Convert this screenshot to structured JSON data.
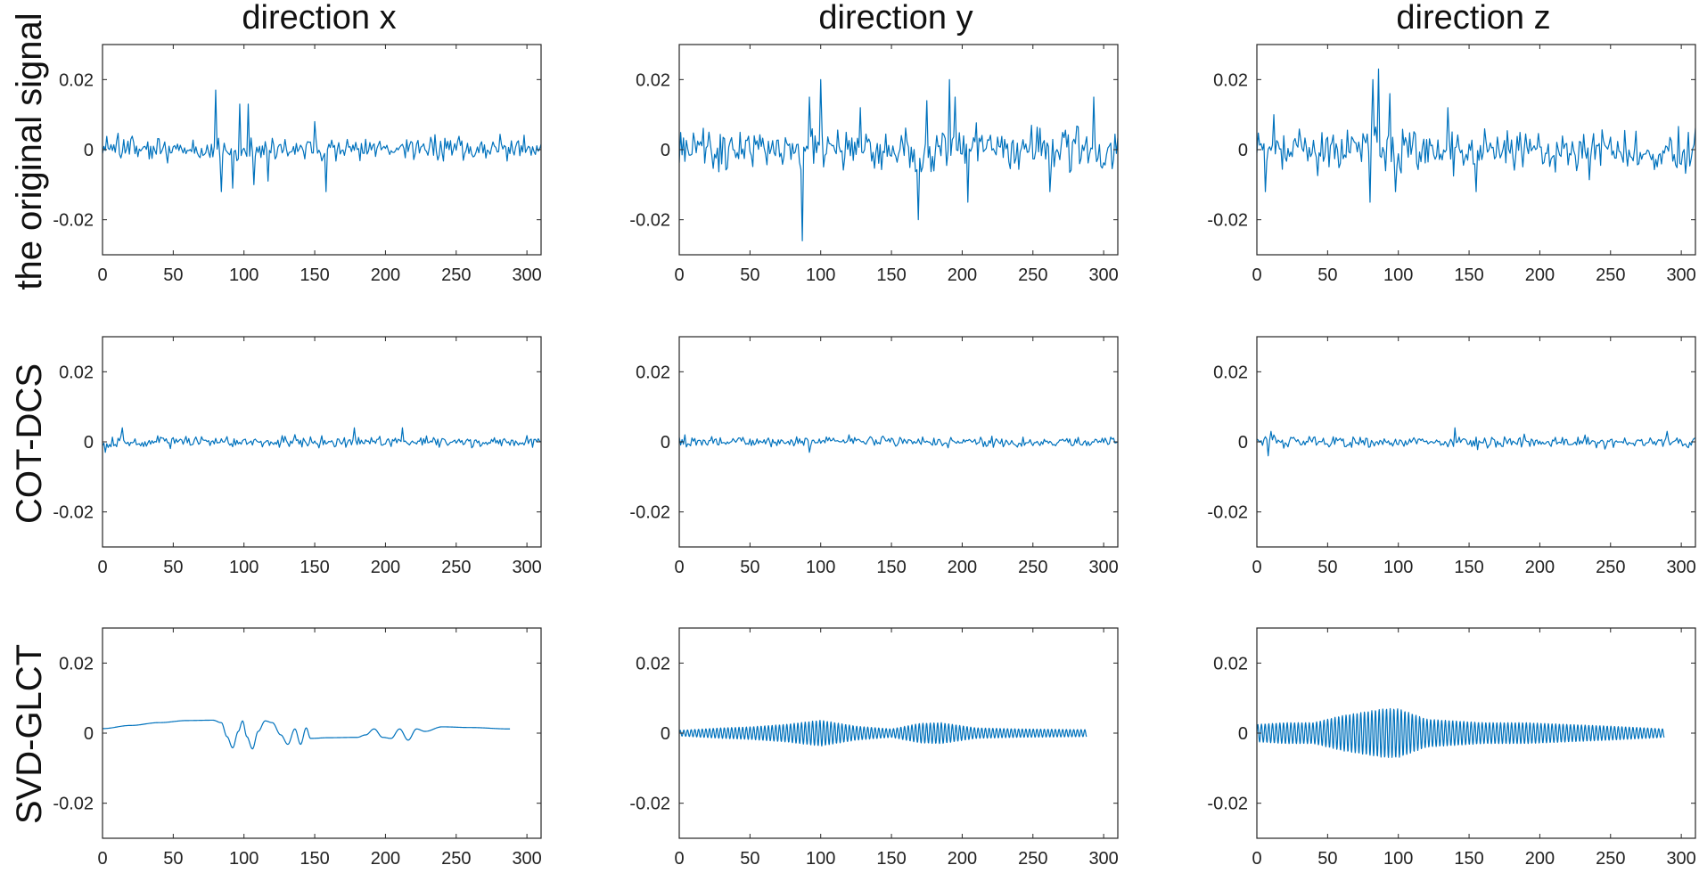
{
  "figure": {
    "column_titles": [
      "direction x",
      "direction y",
      "direction z"
    ],
    "row_labels": [
      "the original signal",
      "COT-DCS",
      "SVD-GLCT"
    ],
    "line_color": "#0072BD"
  },
  "chart_data": [
    {
      "type": "line",
      "row": 0,
      "col": 0,
      "title": "direction x",
      "ylabel": "the original signal",
      "xlim": [
        0,
        310
      ],
      "ylim": [
        -0.03,
        0.03
      ],
      "xticks": [
        0,
        50,
        100,
        150,
        200,
        250,
        300
      ],
      "yticks": [
        -0.02,
        0,
        0.02
      ],
      "ytick_labels": [
        "-0.02",
        "0",
        "0.02"
      ],
      "grid": false,
      "length": 310,
      "style": {
        "kind": "noise",
        "amp": 0.0035,
        "seed": 11,
        "bursts": [
          [
            80,
            0.017
          ],
          [
            84,
            -0.012
          ],
          [
            92,
            -0.011
          ],
          [
            97,
            0.013
          ],
          [
            103,
            0.013
          ],
          [
            107,
            -0.01
          ],
          [
            117,
            -0.009
          ],
          [
            158,
            -0.012
          ],
          [
            150,
            0.008
          ]
        ]
      }
    },
    {
      "type": "line",
      "row": 0,
      "col": 1,
      "title": "direction y",
      "xlim": [
        0,
        310
      ],
      "ylim": [
        -0.03,
        0.03
      ],
      "xticks": [
        0,
        50,
        100,
        150,
        200,
        250,
        300
      ],
      "yticks": [
        -0.02,
        0,
        0.02
      ],
      "ytick_labels": [
        "-0.02",
        "0",
        "0.02"
      ],
      "grid": false,
      "length": 310,
      "style": {
        "kind": "noise",
        "amp": 0.006,
        "seed": 23,
        "bursts": [
          [
            87,
            -0.026
          ],
          [
            100,
            0.02
          ],
          [
            92,
            0.015
          ],
          [
            169,
            -0.02
          ],
          [
            191,
            0.02
          ],
          [
            195,
            0.015
          ],
          [
            204,
            -0.015
          ],
          [
            293,
            0.015
          ],
          [
            262,
            -0.012
          ],
          [
            175,
            0.014
          ],
          [
            128,
            0.012
          ]
        ]
      }
    },
    {
      "type": "line",
      "row": 0,
      "col": 2,
      "title": "direction z",
      "xlim": [
        0,
        310
      ],
      "ylim": [
        -0.03,
        0.03
      ],
      "xticks": [
        0,
        50,
        100,
        150,
        200,
        250,
        300
      ],
      "yticks": [
        -0.02,
        0,
        0.02
      ],
      "ytick_labels": [
        "-0.02",
        "0",
        "0.02"
      ],
      "grid": false,
      "length": 310,
      "style": {
        "kind": "noise",
        "amp": 0.006,
        "seed": 37,
        "bursts": [
          [
            86,
            0.023
          ],
          [
            82,
            0.02
          ],
          [
            80,
            -0.015
          ],
          [
            94,
            0.016
          ],
          [
            98,
            -0.012
          ],
          [
            6,
            -0.012
          ],
          [
            135,
            0.012
          ],
          [
            155,
            -0.012
          ],
          [
            12,
            0.01
          ]
        ]
      }
    },
    {
      "type": "line",
      "row": 1,
      "col": 0,
      "ylabel": "COT-DCS",
      "xlim": [
        0,
        310
      ],
      "ylim": [
        -0.03,
        0.03
      ],
      "xticks": [
        0,
        50,
        100,
        150,
        200,
        250,
        300
      ],
      "yticks": [
        -0.02,
        0,
        0.02
      ],
      "ytick_labels": [
        "-0.02",
        "0",
        "0.02"
      ],
      "grid": false,
      "length": 310,
      "style": {
        "kind": "noise",
        "amp": 0.0016,
        "seed": 51,
        "bursts": [
          [
            14,
            0.004
          ],
          [
            178,
            0.004
          ],
          [
            212,
            0.004
          ],
          [
            2,
            -0.003
          ]
        ]
      }
    },
    {
      "type": "line",
      "row": 1,
      "col": 1,
      "xlim": [
        0,
        310
      ],
      "ylim": [
        -0.03,
        0.03
      ],
      "xticks": [
        0,
        50,
        100,
        150,
        200,
        250,
        300
      ],
      "yticks": [
        -0.02,
        0,
        0.02
      ],
      "ytick_labels": [
        "-0.02",
        "0",
        "0.02"
      ],
      "grid": false,
      "length": 310,
      "style": {
        "kind": "noise",
        "amp": 0.0013,
        "seed": 63,
        "bursts": [
          [
            92,
            -0.003
          ],
          [
            120,
            0.002
          ],
          [
            4,
            0.002
          ]
        ]
      }
    },
    {
      "type": "line",
      "row": 1,
      "col": 2,
      "xlim": [
        0,
        310
      ],
      "ylim": [
        -0.03,
        0.03
      ],
      "xticks": [
        0,
        50,
        100,
        150,
        200,
        250,
        300
      ],
      "yticks": [
        -0.02,
        0,
        0.02
      ],
      "ytick_labels": [
        "-0.02",
        "0",
        "0.02"
      ],
      "grid": false,
      "length": 310,
      "style": {
        "kind": "noise",
        "amp": 0.0017,
        "seed": 77,
        "bursts": [
          [
            8,
            -0.004
          ],
          [
            10,
            0.003
          ],
          [
            140,
            0.004
          ],
          [
            290,
            0.003
          ]
        ]
      }
    },
    {
      "type": "line",
      "row": 2,
      "col": 0,
      "ylabel": "SVD-GLCT",
      "xlim": [
        0,
        310
      ],
      "ylim": [
        -0.03,
        0.03
      ],
      "xticks": [
        0,
        50,
        100,
        150,
        200,
        250,
        300
      ],
      "yticks": [
        -0.02,
        0,
        0.02
      ],
      "ytick_labels": [
        "-0.02",
        "0",
        "0.02"
      ],
      "grid": false,
      "length": 288,
      "style": {
        "kind": "smooth",
        "points": [
          [
            0,
            0.0013
          ],
          [
            20,
            0.0022
          ],
          [
            40,
            0.003
          ],
          [
            60,
            0.0036
          ],
          [
            78,
            0.0037
          ],
          [
            84,
            0.003
          ],
          [
            88,
            -0.001
          ],
          [
            92,
            -0.0042
          ],
          [
            96,
            0.0005
          ],
          [
            99,
            0.0035
          ],
          [
            102,
            -0.001
          ],
          [
            106,
            -0.0045
          ],
          [
            110,
            0.0005
          ],
          [
            115,
            0.0035
          ],
          [
            120,
            0.003
          ],
          [
            126,
            -0.0005
          ],
          [
            131,
            -0.0032
          ],
          [
            136,
            0.0012
          ],
          [
            140,
            -0.0032
          ],
          [
            144,
            0.0015
          ],
          [
            147,
            -0.0015
          ],
          [
            160,
            -0.0013
          ],
          [
            180,
            -0.0012
          ],
          [
            186,
            -0.0005
          ],
          [
            192,
            0.0012
          ],
          [
            198,
            -0.0012
          ],
          [
            204,
            -0.0015
          ],
          [
            210,
            0.0012
          ],
          [
            216,
            -0.002
          ],
          [
            222,
            0.0012
          ],
          [
            228,
            0.0005
          ],
          [
            240,
            0.0018
          ],
          [
            260,
            0.0016
          ],
          [
            288,
            0.0012
          ]
        ]
      }
    },
    {
      "type": "line",
      "row": 2,
      "col": 1,
      "xlim": [
        0,
        310
      ],
      "ylim": [
        -0.03,
        0.03
      ],
      "xticks": [
        0,
        50,
        100,
        150,
        200,
        250,
        300
      ],
      "yticks": [
        -0.02,
        0,
        0.02
      ],
      "ytick_labels": [
        "-0.02",
        "0",
        "0.02"
      ],
      "grid": false,
      "length": 288,
      "style": {
        "kind": "oscillation",
        "period": 2.6,
        "envelope": [
          [
            0,
            0.0008
          ],
          [
            30,
            0.0015
          ],
          [
            50,
            0.0018
          ],
          [
            75,
            0.0025
          ],
          [
            100,
            0.0037
          ],
          [
            125,
            0.002
          ],
          [
            150,
            0.0012
          ],
          [
            170,
            0.0028
          ],
          [
            185,
            0.003
          ],
          [
            210,
            0.0015
          ],
          [
            240,
            0.0012
          ],
          [
            265,
            0.0011
          ],
          [
            288,
            0.001
          ]
        ]
      }
    },
    {
      "type": "line",
      "row": 2,
      "col": 2,
      "xlim": [
        0,
        310
      ],
      "ylim": [
        -0.03,
        0.03
      ],
      "xticks": [
        0,
        50,
        100,
        150,
        200,
        250,
        300
      ],
      "yticks": [
        -0.02,
        0,
        0.02
      ],
      "ytick_labels": [
        "-0.02",
        "0",
        "0.02"
      ],
      "grid": false,
      "length": 288,
      "style": {
        "kind": "oscillation",
        "period": 2.6,
        "envelope": [
          [
            0,
            0.0025
          ],
          [
            20,
            0.003
          ],
          [
            40,
            0.003
          ],
          [
            60,
            0.005
          ],
          [
            75,
            0.006
          ],
          [
            90,
            0.007
          ],
          [
            100,
            0.007
          ],
          [
            120,
            0.004
          ],
          [
            140,
            0.0035
          ],
          [
            160,
            0.003
          ],
          [
            190,
            0.003
          ],
          [
            220,
            0.0025
          ],
          [
            250,
            0.002
          ],
          [
            275,
            0.0015
          ],
          [
            288,
            0.0012
          ]
        ]
      }
    }
  ]
}
